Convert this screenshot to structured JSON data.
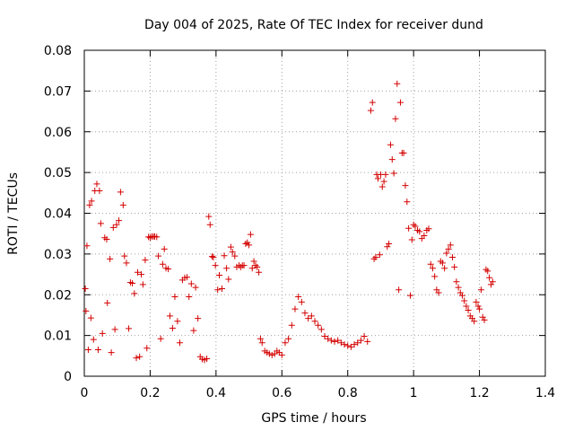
{
  "chart_data": {
    "type": "scatter",
    "title": "Day 004 of 2025, Rate Of TEC Index for receiver dund",
    "xlabel": "GPS time / hours",
    "ylabel": "ROTI / TECUs",
    "xlim": [
      0,
      1.4
    ],
    "ylim": [
      0,
      0.08
    ],
    "xticks": [
      0,
      0.2,
      0.4,
      0.6,
      0.8,
      1,
      1.2,
      1.4
    ],
    "yticks": [
      0,
      0.01,
      0.02,
      0.03,
      0.04,
      0.05,
      0.06,
      0.07,
      0.08
    ],
    "xtick_labels": [
      "0",
      "0.2",
      "0.4",
      "0.6",
      "0.8",
      "1",
      "1.2",
      "1.4"
    ],
    "ytick_labels": [
      "0",
      "0.01",
      "0.02",
      "0.03",
      "0.04",
      "0.05",
      "0.06",
      "0.07",
      "0.08"
    ],
    "grid": true,
    "marker": "+",
    "marker_color": "#d40000",
    "series": [
      {
        "points": [
          [
            0.003,
            0.0215
          ],
          [
            0.005,
            0.016
          ],
          [
            0.008,
            0.032
          ],
          [
            0.012,
            0.0065
          ],
          [
            0.016,
            0.042
          ],
          [
            0.02,
            0.0143
          ],
          [
            0.022,
            0.043
          ],
          [
            0.028,
            0.009
          ],
          [
            0.032,
            0.0455
          ],
          [
            0.038,
            0.0472
          ],
          [
            0.042,
            0.0065
          ],
          [
            0.046,
            0.0455
          ],
          [
            0.05,
            0.0375
          ],
          [
            0.055,
            0.0105
          ],
          [
            0.062,
            0.034
          ],
          [
            0.068,
            0.0336
          ],
          [
            0.07,
            0.018
          ],
          [
            0.078,
            0.0288
          ],
          [
            0.082,
            0.0058
          ],
          [
            0.088,
            0.0365
          ],
          [
            0.093,
            0.0115
          ],
          [
            0.098,
            0.0372
          ],
          [
            0.105,
            0.0382
          ],
          [
            0.11,
            0.0452
          ],
          [
            0.118,
            0.042
          ],
          [
            0.122,
            0.0295
          ],
          [
            0.128,
            0.0278
          ],
          [
            0.135,
            0.0117
          ],
          [
            0.14,
            0.023
          ],
          [
            0.146,
            0.0228
          ],
          [
            0.152,
            0.0203
          ],
          [
            0.158,
            0.0045
          ],
          [
            0.162,
            0.0255
          ],
          [
            0.168,
            0.0048
          ],
          [
            0.173,
            0.025
          ],
          [
            0.178,
            0.0225
          ],
          [
            0.185,
            0.0285
          ],
          [
            0.19,
            0.0069
          ],
          [
            0.195,
            0.0342
          ],
          [
            0.2,
            0.034
          ],
          [
            0.205,
            0.0343
          ],
          [
            0.21,
            0.0343
          ],
          [
            0.214,
            0.0343
          ],
          [
            0.22,
            0.0342
          ],
          [
            0.225,
            0.0295
          ],
          [
            0.232,
            0.0092
          ],
          [
            0.238,
            0.0275
          ],
          [
            0.243,
            0.0312
          ],
          [
            0.248,
            0.0265
          ],
          [
            0.255,
            0.0263
          ],
          [
            0.26,
            0.0148
          ],
          [
            0.268,
            0.0118
          ],
          [
            0.275,
            0.0195
          ],
          [
            0.283,
            0.0135
          ],
          [
            0.29,
            0.0082
          ],
          [
            0.298,
            0.0236
          ],
          [
            0.305,
            0.0242
          ],
          [
            0.312,
            0.0243
          ],
          [
            0.318,
            0.0195
          ],
          [
            0.325,
            0.0227
          ],
          [
            0.332,
            0.0112
          ],
          [
            0.338,
            0.0218
          ],
          [
            0.345,
            0.0142
          ],
          [
            0.352,
            0.0048
          ],
          [
            0.358,
            0.0042
          ],
          [
            0.365,
            0.004
          ],
          [
            0.372,
            0.0043
          ],
          [
            0.378,
            0.0392
          ],
          [
            0.382,
            0.0372
          ],
          [
            0.388,
            0.0294
          ],
          [
            0.392,
            0.0292
          ],
          [
            0.398,
            0.0272
          ],
          [
            0.405,
            0.0212
          ],
          [
            0.41,
            0.0248
          ],
          [
            0.418,
            0.0215
          ],
          [
            0.425,
            0.0296
          ],
          [
            0.432,
            0.0265
          ],
          [
            0.438,
            0.0238
          ],
          [
            0.445,
            0.0317
          ],
          [
            0.45,
            0.0305
          ],
          [
            0.457,
            0.0295
          ],
          [
            0.463,
            0.0268
          ],
          [
            0.47,
            0.0272
          ],
          [
            0.475,
            0.0268
          ],
          [
            0.48,
            0.0272
          ],
          [
            0.485,
            0.0272
          ],
          [
            0.49,
            0.0325
          ],
          [
            0.495,
            0.0328
          ],
          [
            0.5,
            0.0322
          ],
          [
            0.505,
            0.0348
          ],
          [
            0.51,
            0.0265
          ],
          [
            0.515,
            0.0282
          ],
          [
            0.52,
            0.0272
          ],
          [
            0.525,
            0.0268
          ],
          [
            0.53,
            0.0255
          ],
          [
            0.535,
            0.0092
          ],
          [
            0.54,
            0.0082
          ],
          [
            0.548,
            0.0062
          ],
          [
            0.555,
            0.0058
          ],
          [
            0.562,
            0.0055
          ],
          [
            0.57,
            0.0052
          ],
          [
            0.578,
            0.0055
          ],
          [
            0.585,
            0.0062
          ],
          [
            0.592,
            0.0058
          ],
          [
            0.6,
            0.0052
          ],
          [
            0.61,
            0.0082
          ],
          [
            0.62,
            0.0092
          ],
          [
            0.63,
            0.0125
          ],
          [
            0.64,
            0.0165
          ],
          [
            0.65,
            0.0195
          ],
          [
            0.66,
            0.0182
          ],
          [
            0.67,
            0.0155
          ],
          [
            0.68,
            0.0142
          ],
          [
            0.69,
            0.0148
          ],
          [
            0.7,
            0.0135
          ],
          [
            0.71,
            0.0125
          ],
          [
            0.72,
            0.0115
          ],
          [
            0.73,
            0.0098
          ],
          [
            0.74,
            0.0092
          ],
          [
            0.75,
            0.0088
          ],
          [
            0.76,
            0.0085
          ],
          [
            0.77,
            0.0088
          ],
          [
            0.78,
            0.0082
          ],
          [
            0.79,
            0.0078
          ],
          [
            0.8,
            0.0075
          ],
          [
            0.81,
            0.0072
          ],
          [
            0.82,
            0.0078
          ],
          [
            0.83,
            0.0082
          ],
          [
            0.84,
            0.0088
          ],
          [
            0.85,
            0.0098
          ],
          [
            0.86,
            0.0085
          ],
          [
            0.87,
            0.0652
          ],
          [
            0.875,
            0.0672
          ],
          [
            0.88,
            0.0288
          ],
          [
            0.885,
            0.0292
          ],
          [
            0.888,
            0.0495
          ],
          [
            0.892,
            0.0485
          ],
          [
            0.897,
            0.0298
          ],
          [
            0.9,
            0.0495
          ],
          [
            0.905,
            0.0465
          ],
          [
            0.91,
            0.0478
          ],
          [
            0.915,
            0.0495
          ],
          [
            0.92,
            0.0318
          ],
          [
            0.925,
            0.0325
          ],
          [
            0.93,
            0.0568
          ],
          [
            0.935,
            0.0532
          ],
          [
            0.94,
            0.0498
          ],
          [
            0.945,
            0.0632
          ],
          [
            0.95,
            0.0718
          ],
          [
            0.955,
            0.0212
          ],
          [
            0.96,
            0.0672
          ],
          [
            0.965,
            0.0548
          ],
          [
            0.97,
            0.0548
          ],
          [
            0.975,
            0.0468
          ],
          [
            0.98,
            0.0428
          ],
          [
            0.985,
            0.0363
          ],
          [
            0.99,
            0.0198
          ],
          [
            0.995,
            0.0335
          ],
          [
            1.0,
            0.0372
          ],
          [
            1.005,
            0.0368
          ],
          [
            1.012,
            0.0358
          ],
          [
            1.018,
            0.0355
          ],
          [
            1.025,
            0.0338
          ],
          [
            1.032,
            0.0345
          ],
          [
            1.04,
            0.0358
          ],
          [
            1.046,
            0.0362
          ],
          [
            1.052,
            0.0275
          ],
          [
            1.058,
            0.0265
          ],
          [
            1.064,
            0.0245
          ],
          [
            1.07,
            0.0212
          ],
          [
            1.076,
            0.0205
          ],
          [
            1.082,
            0.0282
          ],
          [
            1.088,
            0.0278
          ],
          [
            1.094,
            0.0265
          ],
          [
            1.1,
            0.0302
          ],
          [
            1.106,
            0.0312
          ],
          [
            1.112,
            0.0322
          ],
          [
            1.118,
            0.0292
          ],
          [
            1.124,
            0.0268
          ],
          [
            1.13,
            0.0232
          ],
          [
            1.136,
            0.0218
          ],
          [
            1.142,
            0.0205
          ],
          [
            1.148,
            0.0198
          ],
          [
            1.154,
            0.0185
          ],
          [
            1.16,
            0.0172
          ],
          [
            1.166,
            0.0162
          ],
          [
            1.172,
            0.0148
          ],
          [
            1.178,
            0.0142
          ],
          [
            1.184,
            0.0135
          ],
          [
            1.19,
            0.0182
          ],
          [
            1.196,
            0.0172
          ],
          [
            1.2,
            0.0165
          ],
          [
            1.205,
            0.0212
          ],
          [
            1.21,
            0.0145
          ],
          [
            1.215,
            0.0138
          ],
          [
            1.22,
            0.0262
          ],
          [
            1.225,
            0.0258
          ],
          [
            1.23,
            0.0242
          ],
          [
            1.235,
            0.0225
          ],
          [
            1.24,
            0.0232
          ]
        ]
      }
    ]
  }
}
